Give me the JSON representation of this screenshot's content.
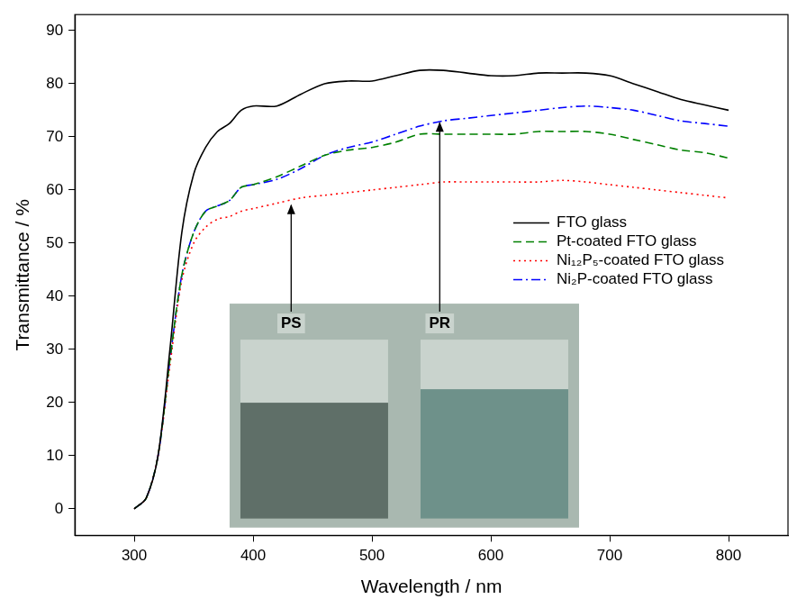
{
  "chart_data": {
    "type": "line",
    "x_label": "Wavelength / nm",
    "y_label": "Transmittance / %",
    "x": [
      300,
      310,
      320,
      330,
      340,
      350,
      360,
      370,
      380,
      390,
      400,
      420,
      440,
      460,
      480,
      500,
      520,
      540,
      560,
      580,
      600,
      620,
      640,
      660,
      680,
      700,
      720,
      740,
      760,
      780,
      800
    ],
    "series": [
      {
        "name": "FTO glass",
        "color": "#000000",
        "line_style": "solid",
        "values": [
          0,
          2,
          10,
          30,
          52,
          63,
          68,
          71,
          72.5,
          75,
          75.8,
          75.8,
          78,
          80,
          80.5,
          80.5,
          81.5,
          82.5,
          82.5,
          82,
          81.5,
          81.5,
          82,
          82,
          82,
          81.5,
          80,
          78.5,
          77,
          76,
          75
        ]
      },
      {
        "name": "Pt-coated FTO glass",
        "color": "#008000",
        "line_style": "dashed",
        "values": [
          0,
          2,
          10,
          28,
          44,
          52,
          56,
          57,
          58,
          60.5,
          61,
          62.5,
          64.5,
          66.5,
          67.5,
          68,
          69,
          70.5,
          70.5,
          70.5,
          70.5,
          70.5,
          71,
          71,
          71,
          70.5,
          69.5,
          68.5,
          67.5,
          67,
          66
        ]
      },
      {
        "name": "Ni₁₂P₅-coated FTO glass",
        "color": "#ff0000",
        "line_style": "dotted",
        "values": [
          0,
          2,
          10,
          27,
          43,
          50,
          53,
          54.5,
          55,
          56,
          56.5,
          57.5,
          58.5,
          59,
          59.5,
          60,
          60.5,
          61,
          61.5,
          61.5,
          61.5,
          61.5,
          61.5,
          61.8,
          61.5,
          61,
          60.5,
          60,
          59.5,
          59,
          58.5
        ]
      },
      {
        "name": "Ni₂P-coated FTO glass",
        "color": "#0000ff",
        "line_style": "dashdot",
        "values": [
          0,
          2,
          10,
          28,
          44,
          52,
          56,
          57,
          58,
          60.5,
          61,
          62,
          64,
          66.5,
          68,
          69,
          70.5,
          72,
          73,
          73.5,
          74,
          74.5,
          75,
          75.5,
          75.8,
          75.5,
          75,
          74,
          73,
          72.5,
          72
        ]
      }
    ],
    "xlim": [
      250,
      850
    ],
    "xticks": [
      300,
      400,
      500,
      600,
      700,
      800
    ],
    "ylim": [
      -5,
      93
    ],
    "yticks": [
      0,
      10,
      20,
      30,
      40,
      50,
      60,
      70,
      80,
      90
    ],
    "grid": false,
    "legend": "right",
    "annotations": [
      {
        "text": "PS",
        "x": 432,
        "y": 57.5
      },
      {
        "text": "PR",
        "x": 557,
        "y": 73
      }
    ]
  }
}
